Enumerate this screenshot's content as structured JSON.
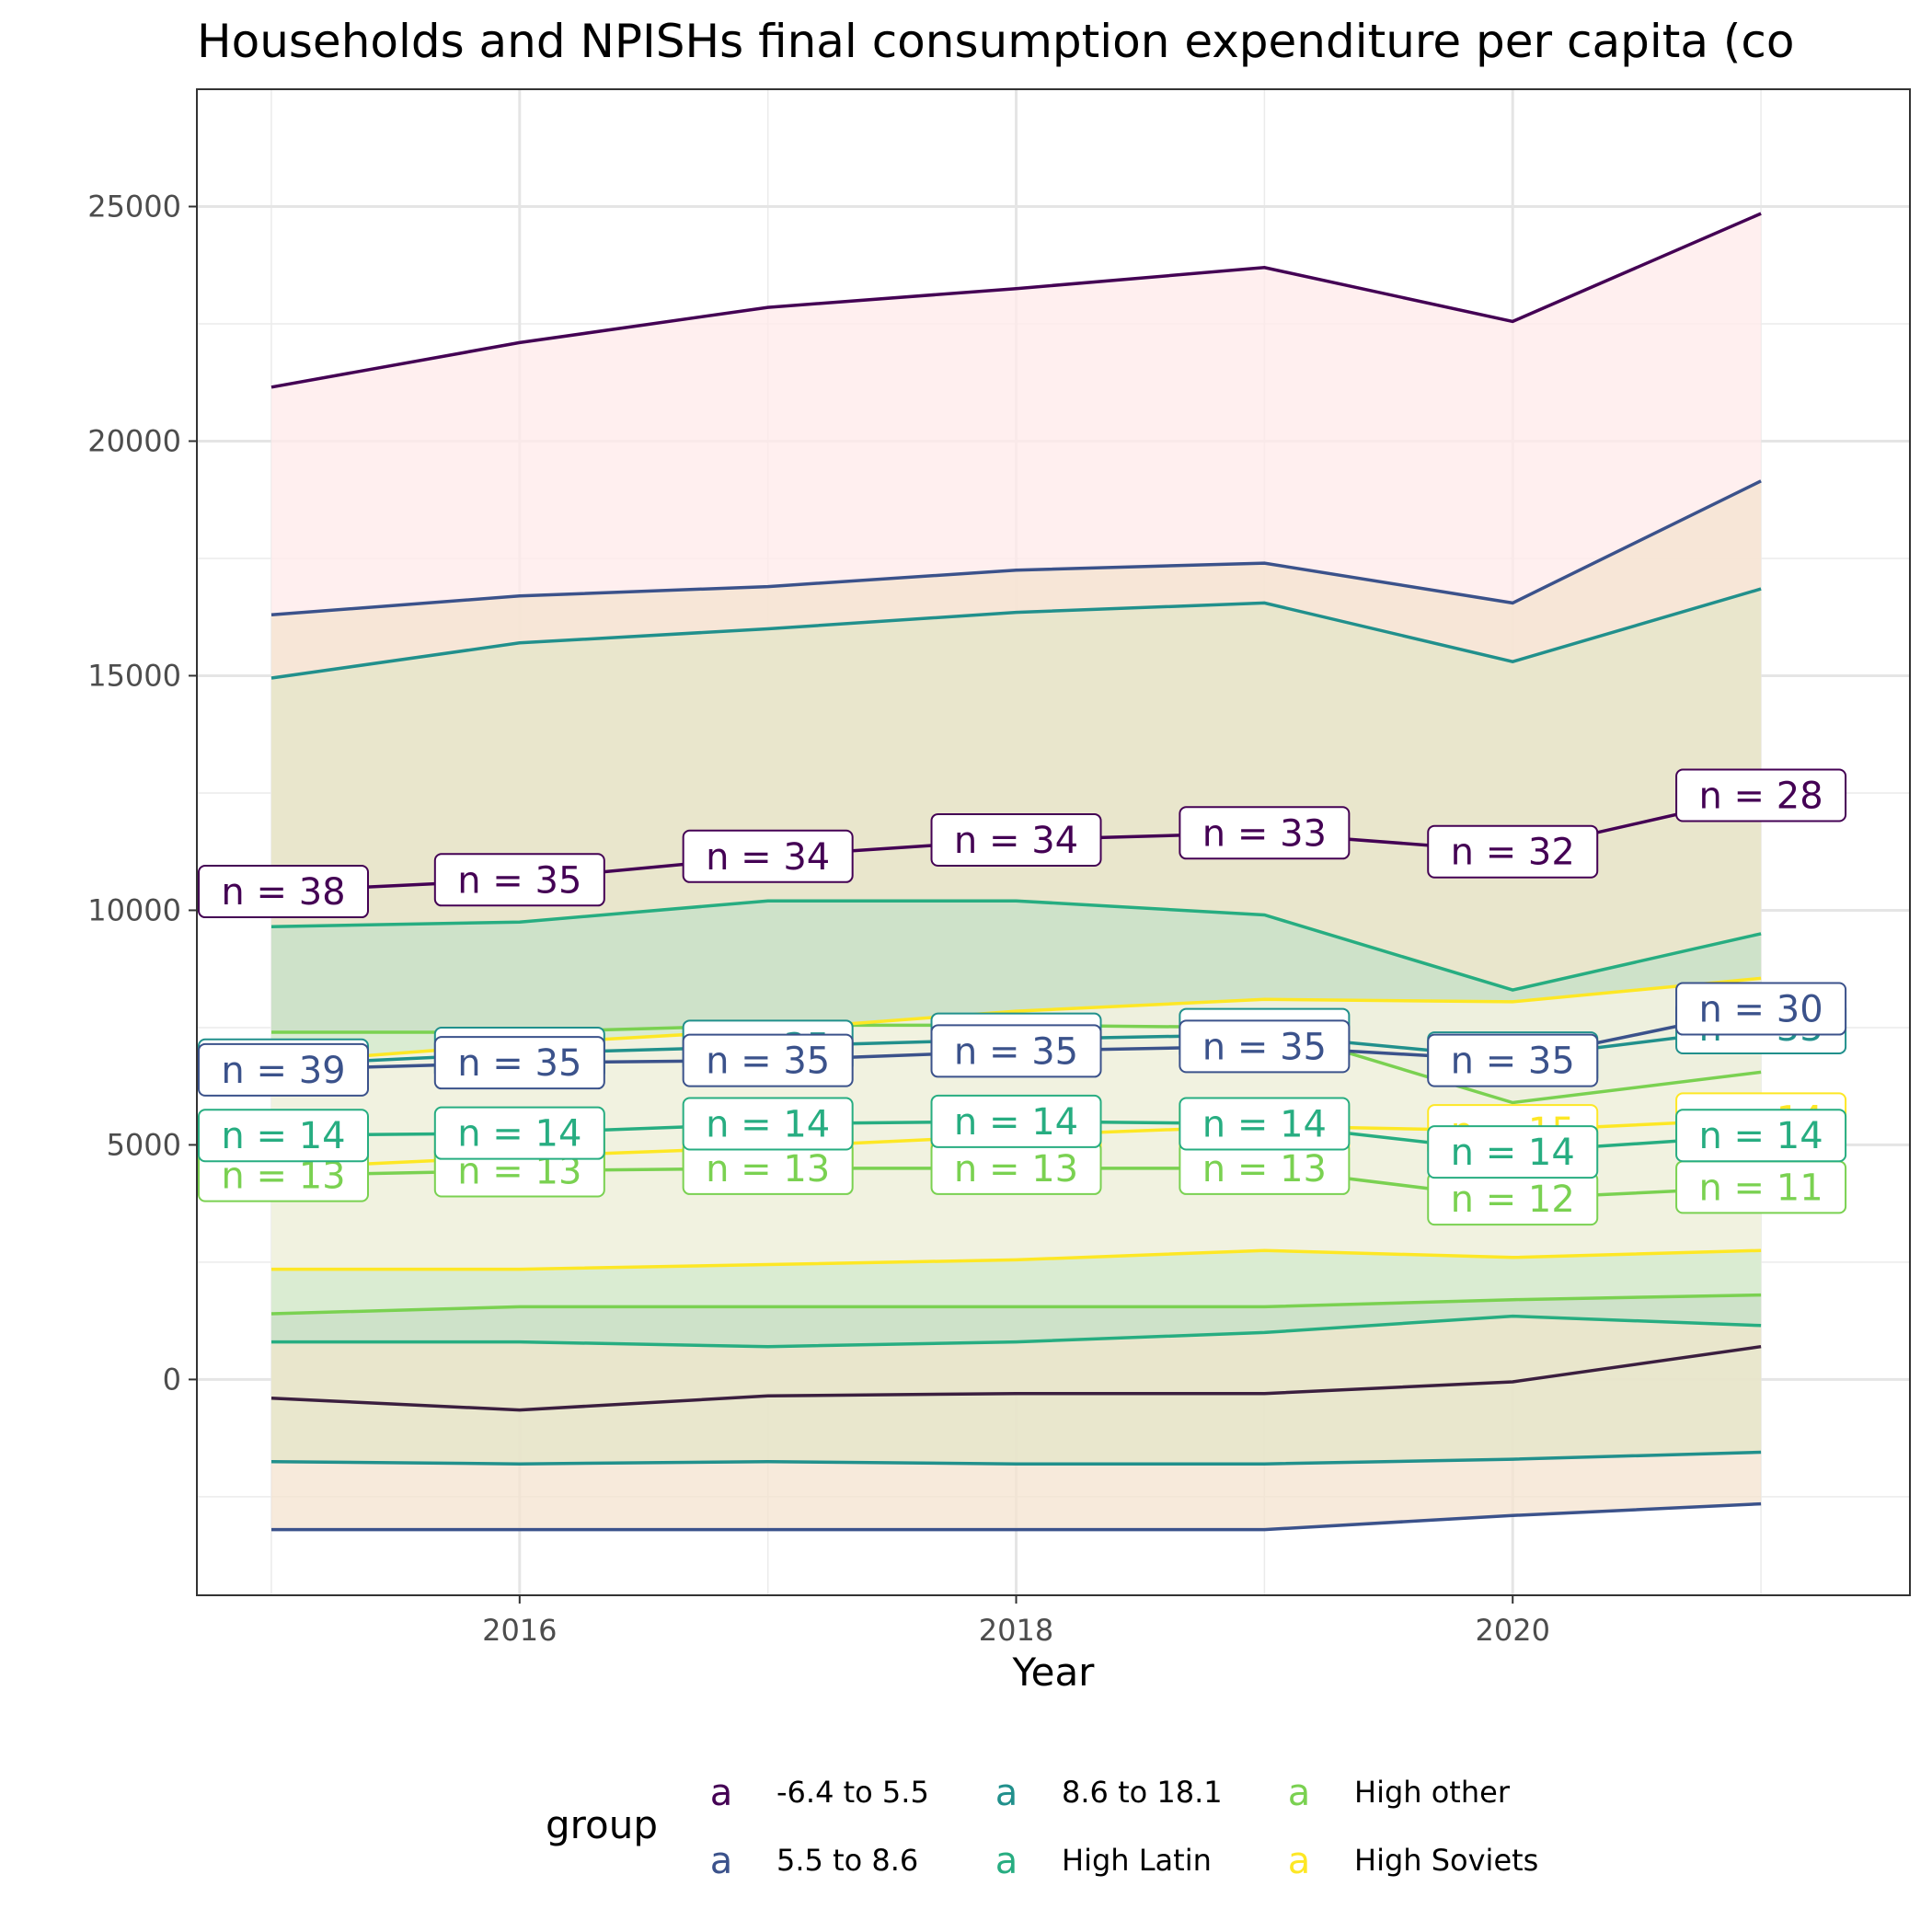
{
  "chart_data": {
    "type": "line",
    "title": "Households and NPISHs final consumption expenditure per capita (co",
    "xlabel": "Year",
    "ylabel": "",
    "x": [
      2015,
      2016,
      2017,
      2018,
      2019,
      2020,
      2021
    ],
    "x_ticks": [
      2016,
      2018,
      2020
    ],
    "x_tick_labels": [
      "2016",
      "2018",
      "2020"
    ],
    "y_ticks": [
      0,
      5000,
      10000,
      15000,
      20000,
      25000
    ],
    "y_tick_labels": [
      "0",
      "5000",
      "10000",
      "15000",
      "20000",
      "25000"
    ],
    "xlim": [
      2014.7,
      2021.6
    ],
    "ylim": [
      -4600,
      27500
    ],
    "grid": true,
    "legend_position": "bottom",
    "legend_title": "group",
    "legend_key_glyph": "a",
    "series": [
      {
        "name": "-6.4 to 5.5",
        "color": "#440154",
        "band_fill": "#ffe9e9",
        "mean": [
          10400,
          10650,
          11150,
          11500,
          11650,
          11250,
          12450
        ],
        "upper": [
          21150,
          22100,
          22850,
          23250,
          23700,
          22550,
          24850
        ],
        "lower": [
          -400,
          -650,
          -350,
          -300,
          -300,
          -50,
          700
        ],
        "lower_color": "#3b1f3f",
        "labels": [
          "n = 38",
          "n = 35",
          "n = 34",
          "n = 34",
          "n = 33",
          "n = 32",
          "n = 28"
        ]
      },
      {
        "name": "5.5 to 8.6",
        "color": "#3b528b",
        "band_fill": "#f4e3cf",
        "mean": [
          6600,
          6750,
          6800,
          7000,
          7100,
          6800,
          7900
        ],
        "upper": [
          16300,
          16700,
          16900,
          17250,
          17400,
          16550,
          19150
        ],
        "lower": [
          -3200,
          -3200,
          -3200,
          -3200,
          -3200,
          -2900,
          -2650
        ],
        "labels": [
          "n = 39",
          "n = 35",
          "n = 35",
          "n = 35",
          "n = 35",
          "n = 35",
          "n = 30"
        ]
      },
      {
        "name": "8.6 to 18.1",
        "color": "#21908c",
        "band_fill": "#e4e6c8",
        "mean": [
          6700,
          6950,
          7100,
          7250,
          7350,
          6850,
          7500
        ],
        "upper": [
          14950,
          15700,
          16000,
          16350,
          16550,
          15300,
          16850
        ],
        "lower": [
          -1750,
          -1800,
          -1750,
          -1800,
          -1800,
          -1700,
          -1550
        ],
        "labels": [
          "n = 39",
          "n = 35",
          "n = 35",
          "n = 35",
          "n = 35",
          "n = 35",
          "n = 33"
        ]
      },
      {
        "name": "High Latin",
        "color": "#27ad81",
        "band_fill": "#c4e0c8",
        "mean": [
          5200,
          5250,
          5450,
          5500,
          5450,
          4850,
          5200
        ],
        "upper": [
          9650,
          9750,
          10200,
          10200,
          9900,
          8300,
          9500
        ],
        "lower": [
          800,
          800,
          700,
          800,
          1000,
          1350,
          1150
        ],
        "labels": [
          "n = 14",
          "n = 14",
          "n = 14",
          "n = 14",
          "n = 14",
          "n = 14",
          "n = 14"
        ]
      },
      {
        "name": "High other",
        "color": "#7ad151",
        "band_fill": "#ddefd4",
        "mean": [
          4350,
          4450,
          4500,
          4500,
          4500,
          3850,
          4100
        ],
        "upper": [
          7400,
          7400,
          7550,
          7550,
          7500,
          5900,
          6550
        ],
        "lower": [
          1400,
          1550,
          1550,
          1550,
          1550,
          1700,
          1800
        ],
        "labels": [
          "n = 13",
          "n = 13",
          "n = 13",
          "n = 13",
          "n = 13",
          "n = 12",
          "n = 11"
        ]
      },
      {
        "name": "High Soviets",
        "color": "#fde725",
        "band_fill": "#f8f4e4",
        "mean": [
          4500,
          4750,
          4950,
          5200,
          5400,
          5300,
          5550
        ],
        "upper": [
          6750,
          7150,
          7450,
          7850,
          8100,
          8050,
          8550
        ],
        "lower": [
          2350,
          2350,
          2450,
          2550,
          2750,
          2600,
          2750
        ],
        "labels": [
          "n = 15",
          "n = 16",
          "n = 16",
          "n = 16",
          "n = 16",
          "n = 15",
          "n = 14"
        ]
      }
    ]
  }
}
